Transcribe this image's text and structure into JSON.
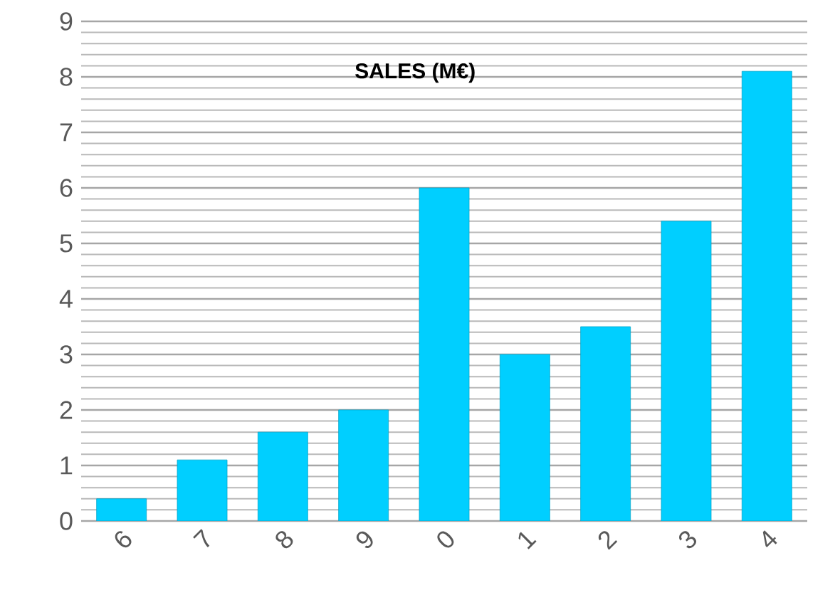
{
  "chart_data": {
    "type": "bar",
    "title": "SALES (M€)",
    "categories": [
      "6",
      "7",
      "8",
      "9",
      "0",
      "1",
      "2",
      "3",
      "4"
    ],
    "values": [
      0.4,
      1.1,
      1.6,
      2.0,
      6.0,
      3.0,
      3.5,
      5.4,
      8.1
    ],
    "color": "#00cfff",
    "ylim": [
      0,
      9
    ],
    "yticks": [
      0,
      1,
      2,
      3,
      4,
      5,
      6,
      7,
      8,
      9
    ],
    "grid": "y"
  }
}
